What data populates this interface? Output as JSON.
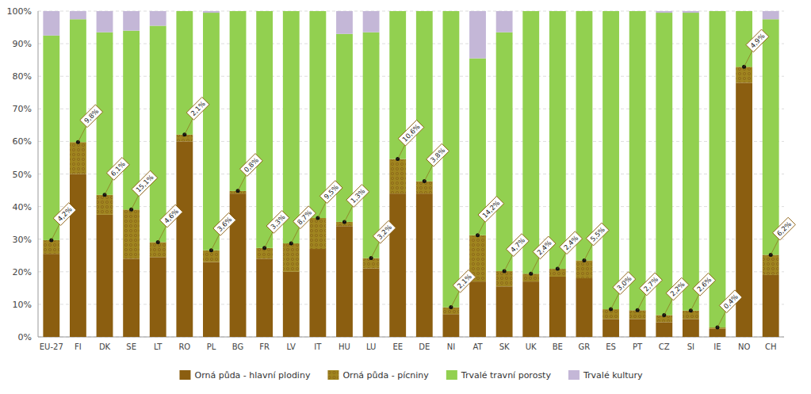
{
  "chart_data": {
    "type": "bar",
    "stacked": true,
    "categories": [
      "EU-27",
      "FI",
      "DK",
      "SE",
      "LT",
      "RO",
      "PL",
      "BG",
      "FR",
      "LV",
      "IT",
      "HU",
      "LU",
      "EE",
      "DE",
      "NI",
      "AT",
      "SK",
      "UK",
      "BE",
      "GR",
      "ES",
      "PT",
      "CZ",
      "SI",
      "IE",
      "NO",
      "CH"
    ],
    "series": [
      {
        "name": "Orná půda - hlavní plodiny",
        "color": "#8B5E10",
        "values": [
          25.5,
          50.0,
          37.5,
          24.0,
          24.5,
          60.0,
          23.0,
          44.0,
          24.0,
          20.0,
          27.0,
          34.0,
          21.0,
          44.0,
          44.0,
          7.0,
          17.0,
          15.5,
          17.0,
          18.5,
          18.0,
          5.5,
          5.5,
          4.5,
          5.5,
          2.5,
          78.0,
          19.0
        ]
      },
      {
        "name": "Orná půda - pícniny",
        "color": "#A08520",
        "data_labels": true,
        "values": [
          4.2,
          9.8,
          6.1,
          15.1,
          4.6,
          2.1,
          3.6,
          0.8,
          3.3,
          8.7,
          9.5,
          1.3,
          3.2,
          10.6,
          3.8,
          2.1,
          14.2,
          4.7,
          2.4,
          2.4,
          5.5,
          3.0,
          2.7,
          2.2,
          2.6,
          0.4,
          4.9,
          6.2
        ],
        "value_labels": [
          "4,2%",
          "9,8%",
          "6,1%",
          "15,1%",
          "4,6%",
          "2,1%",
          "3,6%",
          "0,8%",
          "3,3%",
          "8,7%",
          "9,5%",
          "1,3%",
          "3,2%",
          "10,6%",
          "3,8%",
          "2,1%",
          "14,2%",
          "4,7%",
          "2,4%",
          "2,4%",
          "5,5%",
          "3,0%",
          "2,7%",
          "2,2%",
          "2,6%",
          "0,4%",
          "4,9%",
          "6,2%"
        ]
      },
      {
        "name": "Trvalé travní porosty",
        "color": "#92D050",
        "values": [
          62.8,
          37.7,
          49.9,
          54.9,
          66.4,
          37.9,
          72.9,
          55.2,
          72.7,
          71.3,
          63.5,
          57.7,
          69.3,
          45.4,
          52.2,
          90.9,
          54.3,
          73.3,
          80.6,
          79.1,
          76.5,
          91.5,
          91.8,
          92.8,
          91.4,
          97.1,
          17.1,
          72.3
        ]
      },
      {
        "name": "Trvalé kultury",
        "color": "#C4B7D7",
        "values": [
          7.5,
          2.5,
          6.5,
          6.0,
          4.5,
          0.0,
          0.5,
          0.0,
          0.0,
          0.0,
          0.0,
          7.0,
          6.5,
          0.0,
          0.0,
          0.0,
          14.5,
          6.5,
          0.0,
          0.0,
          0.0,
          0.0,
          0.0,
          0.5,
          0.5,
          0.0,
          0.0,
          2.5
        ]
      }
    ],
    "ylim": [
      0,
      100
    ],
    "yticks": [
      {
        "value": 0,
        "label": "0%"
      },
      {
        "value": 10,
        "label": "10%"
      },
      {
        "value": 20,
        "label": "20%"
      },
      {
        "value": 30,
        "label": "30%"
      },
      {
        "value": 40,
        "label": "40%"
      },
      {
        "value": 50,
        "label": "50%"
      },
      {
        "value": 60,
        "label": "60%"
      },
      {
        "value": 70,
        "label": "70%"
      },
      {
        "value": 80,
        "label": "80%"
      },
      {
        "value": 90,
        "label": "90%"
      },
      {
        "value": 100,
        "label": "100%"
      }
    ],
    "grid": true,
    "legend": "bottom"
  }
}
